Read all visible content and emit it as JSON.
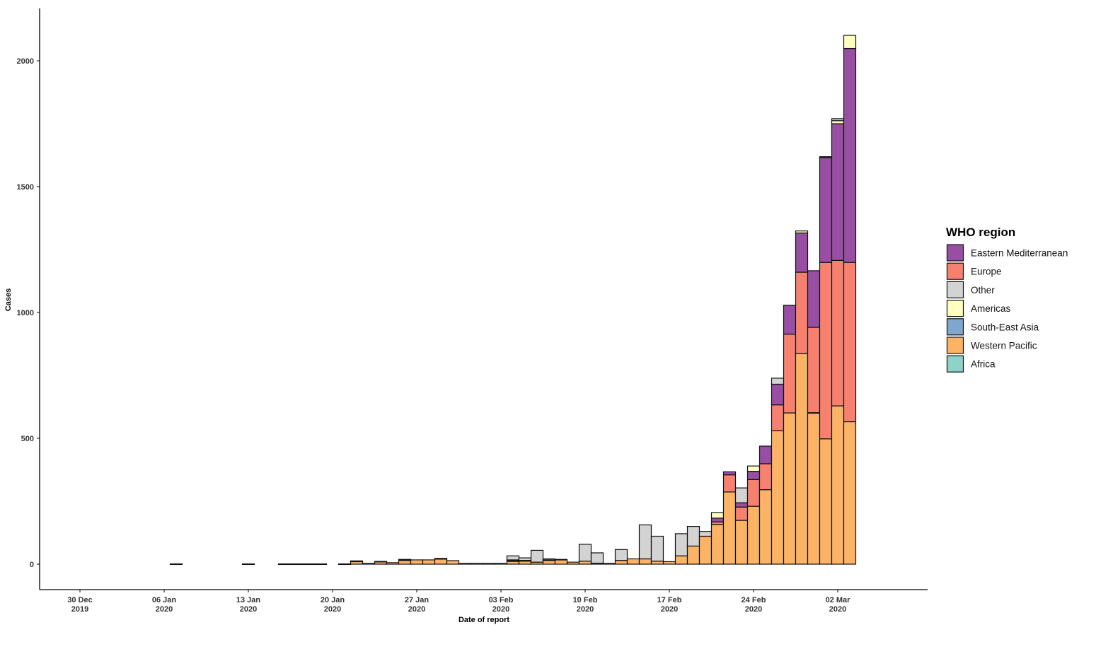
{
  "chart_data": {
    "type": "bar",
    "stacked": true,
    "xlabel": "Date of report",
    "ylabel": "Cases",
    "ylim": [
      -100,
      2200
    ],
    "yticks": [
      0,
      500,
      1000,
      1500,
      2000
    ],
    "xlim": [
      "2019-12-27",
      "2020-03-13"
    ],
    "xticks": [
      {
        "date": "2019-12-30",
        "label": [
          "30 Dec",
          "2019"
        ]
      },
      {
        "date": "2020-01-06",
        "label": [
          "06 Jan",
          "2020"
        ]
      },
      {
        "date": "2020-01-13",
        "label": [
          "13 Jan",
          "2020"
        ]
      },
      {
        "date": "2020-01-20",
        "label": [
          "20 Jan",
          "2020"
        ]
      },
      {
        "date": "2020-01-27",
        "label": [
          "27 Jan",
          "2020"
        ]
      },
      {
        "date": "2020-02-03",
        "label": [
          "03 Feb",
          "2020"
        ]
      },
      {
        "date": "2020-02-10",
        "label": [
          "10 Feb",
          "2020"
        ]
      },
      {
        "date": "2020-02-17",
        "label": [
          "17 Feb",
          "2020"
        ]
      },
      {
        "date": "2020-02-24",
        "label": [
          "24 Feb",
          "2020"
        ]
      },
      {
        "date": "2020-03-02",
        "label": [
          "02 Mar",
          "2020"
        ]
      }
    ],
    "legend": {
      "title": "WHO region",
      "position": "right",
      "entries": [
        "Eastern Mediterranean",
        "Europe",
        "Other",
        "Americas",
        "South-East Asia",
        "Western Pacific",
        "Africa"
      ]
    },
    "x": [
      "2020-01-07",
      "2020-01-13",
      "2020-01-16",
      "2020-01-17",
      "2020-01-18",
      "2020-01-19",
      "2020-01-21",
      "2020-01-22",
      "2020-01-23",
      "2020-01-24",
      "2020-01-25",
      "2020-01-26",
      "2020-01-27",
      "2020-01-28",
      "2020-01-29",
      "2020-01-30",
      "2020-01-31",
      "2020-02-01",
      "2020-02-02",
      "2020-02-03",
      "2020-02-04",
      "2020-02-05",
      "2020-02-06",
      "2020-02-07",
      "2020-02-08",
      "2020-02-09",
      "2020-02-10",
      "2020-02-11",
      "2020-02-12",
      "2020-02-13",
      "2020-02-14",
      "2020-02-15",
      "2020-02-16",
      "2020-02-17",
      "2020-02-18",
      "2020-02-19",
      "2020-02-20",
      "2020-02-21",
      "2020-02-22",
      "2020-02-23",
      "2020-02-24",
      "2020-02-25",
      "2020-02-26",
      "2020-02-27",
      "2020-02-28",
      "2020-02-29",
      "2020-03-01",
      "2020-03-02",
      "2020-03-03"
    ],
    "series": [
      {
        "name": "Western Pacific",
        "color": "#FDB366",
        "values": [
          1,
          1,
          1,
          1,
          1,
          1,
          1,
          10,
          3,
          9,
          6,
          15,
          17,
          17,
          20,
          14,
          3,
          3,
          3,
          3,
          11,
          12,
          8,
          15,
          17,
          8,
          12,
          4,
          3,
          15,
          21,
          21,
          12,
          10,
          33,
          72,
          111,
          158,
          287,
          174,
          230,
          296,
          530,
          601,
          837,
          601,
          498,
          629,
          566
        ]
      },
      {
        "name": "Africa",
        "color": "#8ED3C7",
        "values": [
          0,
          0,
          0,
          0,
          0,
          0,
          0,
          0,
          0,
          0,
          0,
          0,
          0,
          0,
          0,
          0,
          0,
          0,
          0,
          0,
          0,
          0,
          0,
          0,
          0,
          0,
          0,
          0,
          0,
          0,
          0,
          0,
          0,
          0,
          0,
          0,
          0,
          0,
          0,
          0,
          0,
          0,
          0,
          0,
          0,
          1,
          0,
          0,
          0
        ]
      },
      {
        "name": "South-East Asia",
        "color": "#7EA6CE",
        "values": [
          0,
          0,
          0,
          0,
          0,
          0,
          0,
          0,
          0,
          0,
          0,
          0,
          0,
          0,
          0,
          0,
          0,
          0,
          0,
          0,
          0,
          0,
          0,
          0,
          0,
          0,
          0,
          0,
          0,
          0,
          0,
          0,
          0,
          0,
          0,
          0,
          0,
          0,
          0,
          0,
          0,
          0,
          0,
          0,
          0,
          0,
          0,
          0,
          0
        ]
      },
      {
        "name": "Europe",
        "color": "#F8806F",
        "values": [
          0,
          0,
          0,
          0,
          0,
          0,
          0,
          0,
          0,
          0,
          0,
          2,
          0,
          0,
          3,
          0,
          0,
          0,
          0,
          0,
          5,
          3,
          0,
          2,
          2,
          0,
          0,
          0,
          0,
          0,
          0,
          0,
          0,
          0,
          0,
          0,
          0,
          10,
          68,
          53,
          106,
          103,
          103,
          313,
          323,
          339,
          701,
          578,
          633
        ]
      },
      {
        "name": "Eastern Mediterranean",
        "color": "#984EA3",
        "values": [
          0,
          0,
          0,
          0,
          0,
          0,
          0,
          0,
          0,
          0,
          0,
          0,
          0,
          0,
          0,
          0,
          0,
          0,
          0,
          0,
          0,
          0,
          0,
          0,
          0,
          0,
          0,
          0,
          0,
          0,
          0,
          0,
          0,
          0,
          0,
          0,
          0,
          15,
          12,
          17,
          33,
          70,
          82,
          115,
          156,
          225,
          417,
          543,
          850
        ]
      },
      {
        "name": "Americas",
        "color": "#FFFFBF",
        "values": [
          0,
          0,
          0,
          0,
          0,
          0,
          0,
          0,
          0,
          0,
          0,
          0,
          0,
          0,
          0,
          0,
          0,
          0,
          0,
          0,
          1,
          0,
          0,
          0,
          0,
          0,
          0,
          0,
          0,
          0,
          0,
          0,
          0,
          0,
          0,
          0,
          0,
          22,
          0,
          0,
          21,
          0,
          0,
          0,
          8,
          0,
          0,
          12,
          52
        ]
      },
      {
        "name": "Other",
        "color": "#D3D3D3",
        "values": [
          0,
          0,
          0,
          0,
          0,
          0,
          0,
          3,
          0,
          2,
          0,
          2,
          0,
          0,
          0,
          0,
          0,
          0,
          0,
          0,
          16,
          10,
          47,
          4,
          0,
          0,
          67,
          41,
          0,
          43,
          0,
          135,
          99,
          0,
          88,
          78,
          19,
          0,
          0,
          59,
          0,
          0,
          24,
          0,
          0,
          0,
          3,
          8,
          0
        ]
      }
    ]
  }
}
